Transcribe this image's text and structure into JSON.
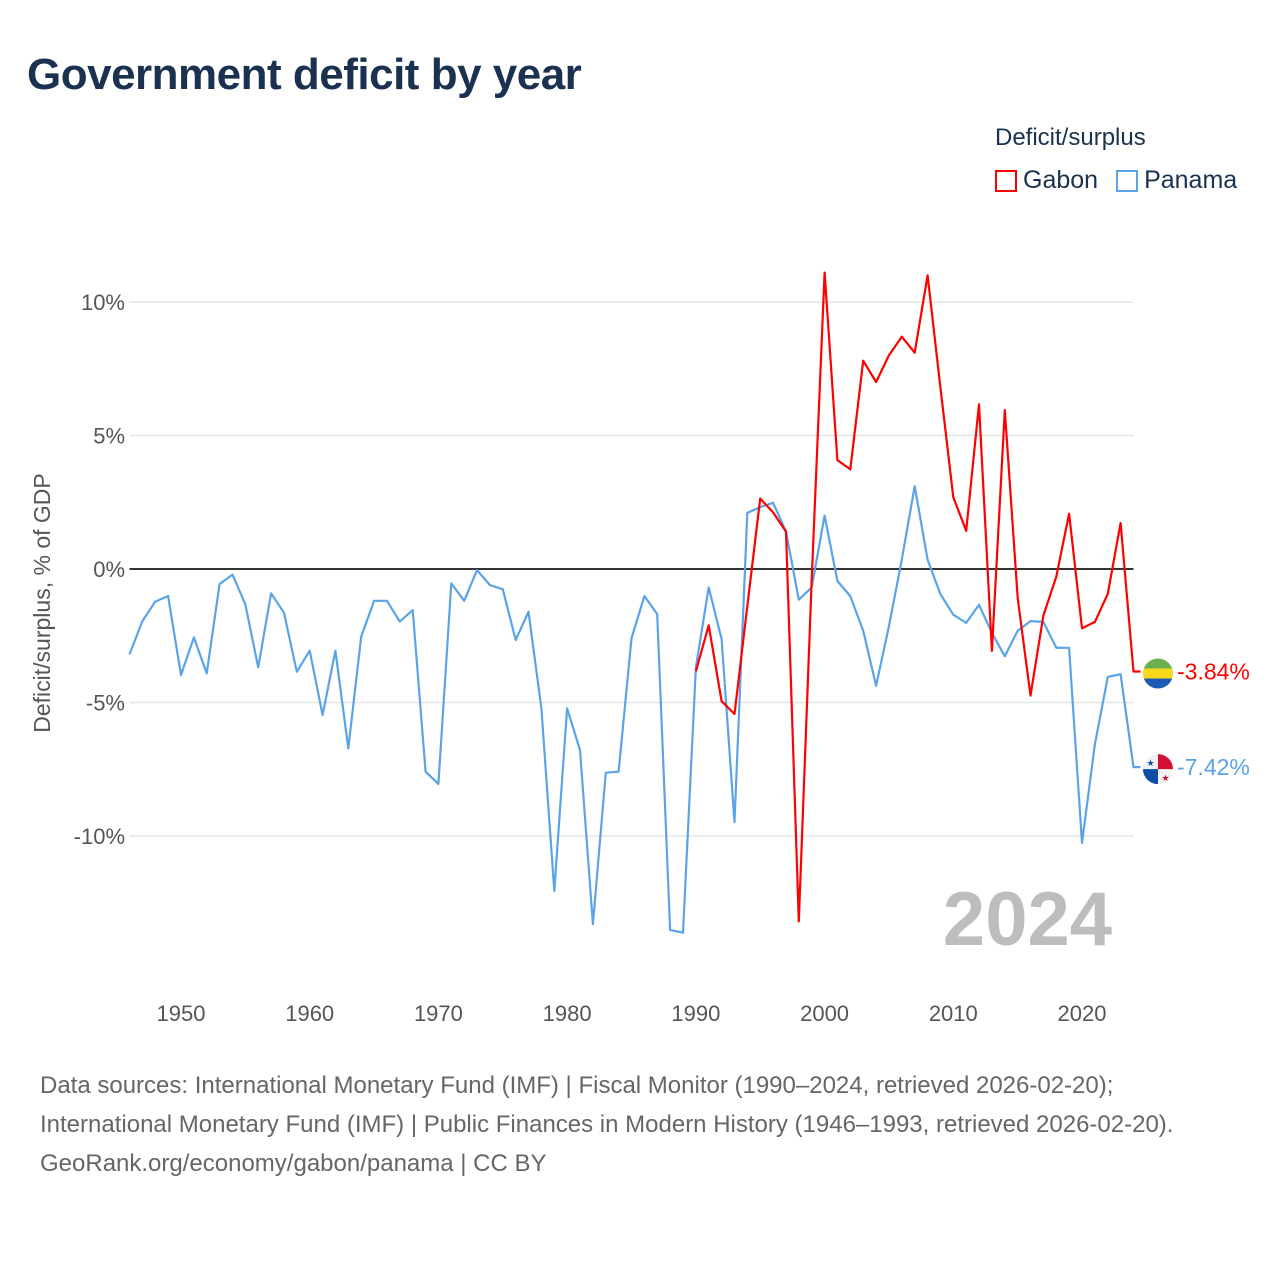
{
  "chart_data": {
    "type": "line",
    "title": "Government deficit by year",
    "ylabel": "Deficit/surplus, % of GDP",
    "xlabel": "",
    "xlim": [
      1946,
      2024
    ],
    "ylim": [
      -14.5,
      11.5
    ],
    "x_ticks": [
      1950,
      1960,
      1970,
      1980,
      1990,
      2000,
      2010,
      2020
    ],
    "x_tick_labels": [
      "1950",
      "1960",
      "1970",
      "1980",
      "1990",
      "2000",
      "2010",
      "2020"
    ],
    "y_ticks": [
      10,
      5,
      0,
      -5,
      -10
    ],
    "y_tick_labels": [
      "10%",
      "5%",
      "0%",
      "-5%",
      "-10%"
    ],
    "grid": true,
    "legend_title": "Deficit/surplus",
    "legend_position": "top-right",
    "year_label": "2024",
    "series": [
      {
        "name": "Gabon",
        "color": "#ff0000",
        "end_label": "-3.84%",
        "x": [
          1990,
          1991,
          1992,
          1993,
          1994,
          1995,
          1996,
          1997,
          1998,
          1999,
          2000,
          2001,
          2002,
          2003,
          2004,
          2005,
          2006,
          2007,
          2008,
          2009,
          2010,
          2011,
          2012,
          2013,
          2014,
          2015,
          2016,
          2017,
          2018,
          2019,
          2020,
          2021,
          2022,
          2023,
          2024
        ],
        "values": [
          -3.83,
          -2.11,
          -4.95,
          -5.43,
          -1.4,
          2.64,
          2.12,
          1.4,
          -13.2,
          -0.4,
          11.1,
          4.08,
          3.73,
          7.8,
          7.0,
          8.0,
          8.7,
          8.1,
          11.0,
          6.8,
          2.69,
          1.43,
          6.17,
          -3.07,
          5.95,
          -1.09,
          -4.74,
          -1.74,
          -0.29,
          2.07,
          -2.22,
          -1.98,
          -0.93,
          1.72,
          -3.84
        ]
      },
      {
        "name": "Panama",
        "color": "#5ba3e8",
        "end_label": "-7.42%",
        "x": [
          1946,
          1947,
          1948,
          1949,
          1950,
          1951,
          1952,
          1953,
          1954,
          1955,
          1956,
          1957,
          1958,
          1959,
          1960,
          1961,
          1962,
          1963,
          1964,
          1965,
          1966,
          1967,
          1968,
          1969,
          1970,
          1971,
          1972,
          1973,
          1974,
          1975,
          1976,
          1977,
          1978,
          1979,
          1980,
          1981,
          1982,
          1983,
          1984,
          1985,
          1986,
          1987,
          1988,
          1989,
          1990,
          1991,
          1992,
          1993,
          1994,
          1995,
          1996,
          1997,
          1998,
          1999,
          2000,
          2001,
          2002,
          2003,
          2004,
          2005,
          2006,
          2007,
          2008,
          2009,
          2010,
          2011,
          2012,
          2013,
          2014,
          2015,
          2016,
          2017,
          2018,
          2019,
          2020,
          2021,
          2022,
          2023,
          2024
        ],
        "values": [
          -3.2,
          -1.95,
          -1.22,
          -1.01,
          -3.97,
          -2.56,
          -3.91,
          -0.56,
          -0.21,
          -1.32,
          -3.68,
          -0.91,
          -1.64,
          -3.85,
          -3.06,
          -5.47,
          -3.06,
          -6.72,
          -2.53,
          -1.19,
          -1.19,
          -1.97,
          -1.54,
          -7.59,
          -8.05,
          -0.54,
          -1.19,
          -0.04,
          -0.6,
          -0.76,
          -2.66,
          -1.6,
          -5.22,
          -12.06,
          -5.22,
          -6.78,
          -13.3,
          -7.63,
          -7.59,
          -2.6,
          -1.01,
          -1.69,
          -13.52,
          -13.62,
          -3.67,
          -0.69,
          -2.63,
          -9.48,
          2.1,
          2.32,
          2.48,
          1.4,
          -1.15,
          -0.69,
          2.0,
          -0.45,
          -1.02,
          -2.31,
          -4.37,
          -2.15,
          0.35,
          3.1,
          0.35,
          -0.94,
          -1.71,
          -2.02,
          -1.34,
          -2.39,
          -3.27,
          -2.31,
          -1.95,
          -1.98,
          -2.95,
          -2.95,
          -10.26,
          -6.56,
          -4.04,
          -3.94,
          -7.42
        ]
      }
    ]
  },
  "footer": {
    "sources": "Data sources: International Monetary Fund (IMF) | Fiscal Monitor (1990–2024, retrieved 2026-02-20); International Monetary Fund (IMF) | Public Finances in Modern History (1946–1993, retrieved 2026-02-20).",
    "credit": "GeoRank.org/economy/gabon/panama | CC BY"
  }
}
